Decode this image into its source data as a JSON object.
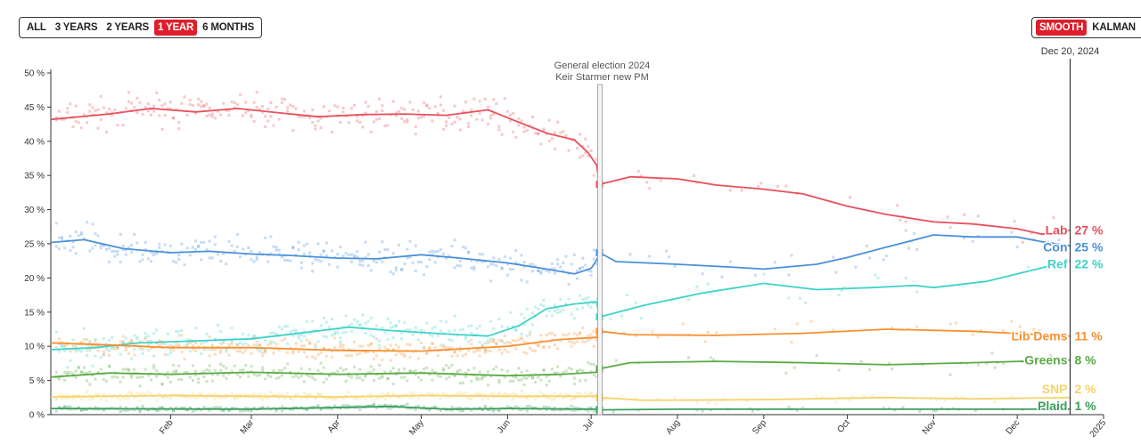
{
  "range_buttons": [
    {
      "label": "ALL",
      "active": false
    },
    {
      "label": "3 YEARS",
      "active": false
    },
    {
      "label": "2 YEARS",
      "active": false
    },
    {
      "label": "1 YEAR",
      "active": true
    },
    {
      "label": "6 MONTHS",
      "active": false
    }
  ],
  "smoothing_buttons": [
    {
      "label": "SMOOTH",
      "active": true
    },
    {
      "label": "KALMAN",
      "active": false
    }
  ],
  "colors": {
    "accent": "#e01e2b",
    "Lab": "#e8505b",
    "Con": "#4a90d9",
    "Ref": "#3fd3c9",
    "Lib Dems": "#f7902f",
    "Greens": "#5aab45",
    "SNP": "#f5d36a",
    "Plaid": "#3aa05c"
  },
  "chart_data": {
    "type": "line",
    "title": "",
    "xlabel": "",
    "ylabel": "",
    "ylim": [
      0,
      50
    ],
    "xlim": [
      "2023-12-20",
      "2025-01-01"
    ],
    "y_ticks": [
      "0 %",
      "5 %",
      "10 %",
      "15 %",
      "20 %",
      "25 %",
      "30 %",
      "35 %",
      "40 %",
      "45 %",
      "50 %"
    ],
    "y_tick_values": [
      0,
      5,
      10,
      15,
      20,
      25,
      30,
      35,
      40,
      45,
      50
    ],
    "x_ticks": [
      {
        "label": "Feb",
        "date": "2024-02-01"
      },
      {
        "label": "Mar",
        "date": "2024-03-01"
      },
      {
        "label": "Apr",
        "date": "2024-04-01"
      },
      {
        "label": "May",
        "date": "2024-05-01"
      },
      {
        "label": "Jun",
        "date": "2024-06-01"
      },
      {
        "label": "Jul",
        "date": "2024-07-01"
      },
      {
        "label": "Aug",
        "date": "2024-08-01"
      },
      {
        "label": "Sep",
        "date": "2024-09-01"
      },
      {
        "label": "Oct",
        "date": "2024-10-01"
      },
      {
        "label": "Nov",
        "date": "2024-11-01"
      },
      {
        "label": "Dec",
        "date": "2024-12-01"
      },
      {
        "label": "2025",
        "date": "2025-01-01"
      }
    ],
    "annotation": {
      "date": "2024-07-04",
      "lines": [
        "General election 2024",
        "Keir Starmer new PM"
      ]
    },
    "cursor": {
      "date": "2024-12-20",
      "label": "Dec 20, 2024"
    },
    "grid": false,
    "legend": "right",
    "series": [
      {
        "name": "Lab",
        "label": "Lab",
        "value_label": "27 %",
        "election_result": 33.7,
        "points": [
          [
            "2023-12-20",
            43.2
          ],
          [
            "2024-01-10",
            44.0
          ],
          [
            "2024-01-25",
            44.8
          ],
          [
            "2024-02-10",
            44.3
          ],
          [
            "2024-02-25",
            44.8
          ],
          [
            "2024-03-10",
            44.2
          ],
          [
            "2024-03-25",
            43.6
          ],
          [
            "2024-04-10",
            43.9
          ],
          [
            "2024-04-25",
            44.0
          ],
          [
            "2024-05-10",
            43.8
          ],
          [
            "2024-05-25",
            44.6
          ],
          [
            "2024-06-05",
            42.8
          ],
          [
            "2024-06-15",
            41.2
          ],
          [
            "2024-06-25",
            40.2
          ],
          [
            "2024-06-30",
            38.3
          ],
          [
            "2024-07-03",
            36.5
          ],
          [
            "2024-07-04",
            33.7
          ],
          [
            "2024-07-15",
            34.8
          ],
          [
            "2024-08-01",
            34.5
          ],
          [
            "2024-08-15",
            33.6
          ],
          [
            "2024-09-01",
            33.0
          ],
          [
            "2024-09-15",
            32.3
          ],
          [
            "2024-10-01",
            30.5
          ],
          [
            "2024-10-15",
            29.3
          ],
          [
            "2024-11-01",
            28.2
          ],
          [
            "2024-11-15",
            27.9
          ],
          [
            "2024-12-01",
            27.2
          ],
          [
            "2024-12-10",
            26.4
          ],
          [
            "2024-12-20",
            27.0
          ]
        ]
      },
      {
        "name": "Con",
        "label": "Con",
        "value_label": "25 %",
        "election_result": 23.7,
        "points": [
          [
            "2023-12-20",
            25.2
          ],
          [
            "2024-01-01",
            25.6
          ],
          [
            "2024-01-15",
            24.3
          ],
          [
            "2024-02-01",
            23.7
          ],
          [
            "2024-02-15",
            23.9
          ],
          [
            "2024-03-01",
            23.5
          ],
          [
            "2024-03-15",
            23.3
          ],
          [
            "2024-04-01",
            22.9
          ],
          [
            "2024-04-15",
            22.8
          ],
          [
            "2024-05-01",
            23.4
          ],
          [
            "2024-05-15",
            22.9
          ],
          [
            "2024-06-01",
            22.2
          ],
          [
            "2024-06-15",
            21.3
          ],
          [
            "2024-06-25",
            20.6
          ],
          [
            "2024-07-01",
            21.4
          ],
          [
            "2024-07-03",
            22.6
          ],
          [
            "2024-07-04",
            23.7
          ],
          [
            "2024-07-10",
            22.4
          ],
          [
            "2024-08-01",
            22.0
          ],
          [
            "2024-08-20",
            21.6
          ],
          [
            "2024-09-01",
            21.3
          ],
          [
            "2024-09-20",
            22.0
          ],
          [
            "2024-10-01",
            23.0
          ],
          [
            "2024-10-15",
            24.5
          ],
          [
            "2024-11-01",
            26.3
          ],
          [
            "2024-11-15",
            26.0
          ],
          [
            "2024-12-01",
            26.0
          ],
          [
            "2024-12-10",
            25.3
          ],
          [
            "2024-12-20",
            24.7
          ]
        ]
      },
      {
        "name": "Ref",
        "label": "Ref",
        "value_label": "22 %",
        "election_result": 14.3,
        "points": [
          [
            "2023-12-20",
            9.5
          ],
          [
            "2024-01-05",
            9.8
          ],
          [
            "2024-01-20",
            10.5
          ],
          [
            "2024-02-10",
            10.8
          ],
          [
            "2024-03-01",
            11.1
          ],
          [
            "2024-03-20",
            12.0
          ],
          [
            "2024-04-05",
            12.8
          ],
          [
            "2024-04-20",
            12.3
          ],
          [
            "2024-05-10",
            11.8
          ],
          [
            "2024-05-25",
            11.5
          ],
          [
            "2024-06-05",
            13.0
          ],
          [
            "2024-06-15",
            15.5
          ],
          [
            "2024-06-25",
            16.2
          ],
          [
            "2024-07-03",
            16.5
          ],
          [
            "2024-07-04",
            14.3
          ],
          [
            "2024-07-20",
            16.0
          ],
          [
            "2024-08-10",
            17.8
          ],
          [
            "2024-09-01",
            19.2
          ],
          [
            "2024-09-20",
            18.3
          ],
          [
            "2024-10-10",
            18.6
          ],
          [
            "2024-10-25",
            18.9
          ],
          [
            "2024-11-01",
            18.6
          ],
          [
            "2024-11-20",
            19.5
          ],
          [
            "2024-12-05",
            21.0
          ],
          [
            "2024-12-20",
            22.5
          ]
        ]
      },
      {
        "name": "Lib Dems",
        "label": "Lib Dems",
        "value_label": "11 %",
        "election_result": 12.2,
        "points": [
          [
            "2023-12-20",
            10.5
          ],
          [
            "2024-01-10",
            10.2
          ],
          [
            "2024-02-01",
            9.8
          ],
          [
            "2024-03-01",
            9.8
          ],
          [
            "2024-04-01",
            9.4
          ],
          [
            "2024-05-01",
            9.3
          ],
          [
            "2024-06-01",
            10.0
          ],
          [
            "2024-06-20",
            11.0
          ],
          [
            "2024-07-03",
            11.3
          ],
          [
            "2024-07-04",
            12.2
          ],
          [
            "2024-07-15",
            11.7
          ],
          [
            "2024-08-15",
            11.6
          ],
          [
            "2024-09-15",
            11.9
          ],
          [
            "2024-10-15",
            12.5
          ],
          [
            "2024-11-15",
            12.2
          ],
          [
            "2024-12-20",
            11.5
          ]
        ]
      },
      {
        "name": "Greens",
        "label": "Greens",
        "value_label": "8 %",
        "election_result": 6.7,
        "points": [
          [
            "2023-12-20",
            5.5
          ],
          [
            "2024-01-10",
            6.1
          ],
          [
            "2024-02-01",
            5.9
          ],
          [
            "2024-03-01",
            6.2
          ],
          [
            "2024-04-01",
            5.9
          ],
          [
            "2024-05-01",
            6.1
          ],
          [
            "2024-06-01",
            5.7
          ],
          [
            "2024-06-20",
            5.9
          ],
          [
            "2024-07-03",
            6.2
          ],
          [
            "2024-07-04",
            6.7
          ],
          [
            "2024-07-15",
            7.6
          ],
          [
            "2024-08-15",
            7.8
          ],
          [
            "2024-09-15",
            7.6
          ],
          [
            "2024-10-15",
            7.3
          ],
          [
            "2024-11-15",
            7.6
          ],
          [
            "2024-12-20",
            8.0
          ]
        ]
      },
      {
        "name": "SNP",
        "label": "SNP",
        "value_label": "2 %",
        "election_result": 2.5,
        "points": [
          [
            "2023-12-20",
            2.6
          ],
          [
            "2024-02-01",
            2.8
          ],
          [
            "2024-03-01",
            2.7
          ],
          [
            "2024-04-01",
            2.6
          ],
          [
            "2024-05-01",
            2.8
          ],
          [
            "2024-06-01",
            2.7
          ],
          [
            "2024-07-03",
            2.7
          ],
          [
            "2024-07-04",
            2.5
          ],
          [
            "2024-07-20",
            2.1
          ],
          [
            "2024-09-01",
            2.2
          ],
          [
            "2024-10-15",
            2.5
          ],
          [
            "2024-11-15",
            2.3
          ],
          [
            "2024-12-20",
            2.5
          ]
        ]
      },
      {
        "name": "Plaid",
        "label": "Plaid",
        "value_label": "1 %",
        "election_result": 0.7,
        "points": [
          [
            "2023-12-20",
            0.9
          ],
          [
            "2024-03-01",
            0.8
          ],
          [
            "2024-04-20",
            1.2
          ],
          [
            "2024-05-10",
            0.8
          ],
          [
            "2024-06-01",
            0.9
          ],
          [
            "2024-07-03",
            0.8
          ],
          [
            "2024-07-04",
            0.7
          ],
          [
            "2024-08-01",
            0.8
          ],
          [
            "2024-10-01",
            0.8
          ],
          [
            "2024-12-20",
            0.8
          ]
        ]
      }
    ]
  }
}
